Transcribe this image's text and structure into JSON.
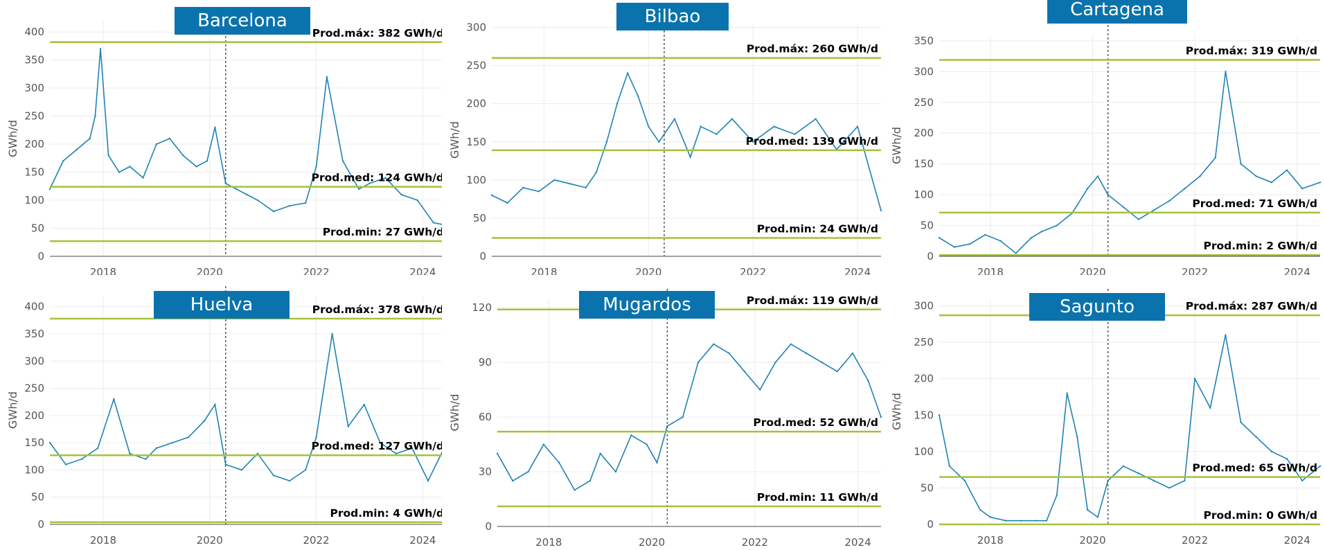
{
  "chart_data": [
    {
      "type": "line",
      "title": "Barcelona",
      "ylabel": "GWh/d",
      "xlim": [
        2017.0,
        2024.45
      ],
      "ylim": [
        0,
        420
      ],
      "yticks": [
        0,
        50,
        100,
        150,
        200,
        250,
        300,
        350,
        400
      ],
      "xticks": [
        2018,
        2020,
        2022,
        2024
      ],
      "vline": 2020.3,
      "ref_lines": [
        {
          "label": "Prod.máx: 382 GWh/d",
          "value": 382
        },
        {
          "label": "Prod.med: 124 GWh/d",
          "value": 124
        },
        {
          "label": "Prod.min: 27 GWh/d",
          "value": 27
        }
      ],
      "series": [
        {
          "x": [
            2017.0,
            2017.25,
            2017.5,
            2017.75,
            2017.85,
            2017.95,
            2018.1,
            2018.3,
            2018.5,
            2018.75,
            2019.0,
            2019.25,
            2019.5,
            2019.75,
            2019.95,
            2020.1,
            2020.3,
            2020.5,
            2020.7,
            2020.9,
            2021.2,
            2021.5,
            2021.8,
            2022.0,
            2022.2,
            2022.5,
            2022.8,
            2023.0,
            2023.3,
            2023.6,
            2023.9,
            2024.2,
            2024.45
          ],
          "y": [
            120,
            170,
            190,
            210,
            250,
            370,
            180,
            150,
            160,
            140,
            200,
            210,
            180,
            160,
            170,
            230,
            130,
            120,
            110,
            100,
            80,
            90,
            95,
            160,
            320,
            170,
            120,
            130,
            140,
            110,
            100,
            60,
            55
          ]
        }
      ]
    },
    {
      "type": "line",
      "title": "Bilbao",
      "ylabel": "GWh/d",
      "xlim": [
        2017.0,
        2024.45
      ],
      "ylim": [
        0,
        305
      ],
      "yticks": [
        0,
        50,
        100,
        150,
        200,
        250,
        300
      ],
      "xticks": [
        2018,
        2020,
        2022,
        2024
      ],
      "vline": 2020.3,
      "ref_lines": [
        {
          "label": "Prod.máx: 260 GWh/d",
          "value": 260
        },
        {
          "label": "Prod.med: 139 GWh/d",
          "value": 139
        },
        {
          "label": "Prod.min: 24 GWh/d",
          "value": 24
        }
      ],
      "series": [
        {
          "x": [
            2017.0,
            2017.3,
            2017.6,
            2017.9,
            2018.2,
            2018.5,
            2018.8,
            2019.0,
            2019.2,
            2019.4,
            2019.6,
            2019.8,
            2020.0,
            2020.2,
            2020.5,
            2020.8,
            2021.0,
            2021.3,
            2021.6,
            2022.0,
            2022.4,
            2022.8,
            2023.2,
            2023.6,
            2024.0,
            2024.45
          ],
          "y": [
            80,
            70,
            90,
            85,
            100,
            95,
            90,
            110,
            150,
            200,
            240,
            210,
            170,
            150,
            180,
            130,
            170,
            160,
            180,
            150,
            170,
            160,
            180,
            140,
            170,
            60
          ]
        }
      ]
    },
    {
      "type": "line",
      "title": "Cartagena",
      "ylabel": "GWh/d",
      "xlim": [
        2017.0,
        2024.45
      ],
      "ylim": [
        0,
        360
      ],
      "yticks": [
        0,
        50,
        100,
        150,
        200,
        250,
        300,
        350
      ],
      "xticks": [
        2018,
        2020,
        2022,
        2024
      ],
      "vline": 2020.3,
      "ref_lines": [
        {
          "label": "Prod.máx: 319 GWh/d",
          "value": 319
        },
        {
          "label": "Prod.med: 71 GWh/d",
          "value": 71
        },
        {
          "label": "Prod.min: 2 GWh/d",
          "value": 2
        }
      ],
      "series": [
        {
          "x": [
            2017.0,
            2017.3,
            2017.6,
            2017.9,
            2018.2,
            2018.5,
            2018.8,
            2019.0,
            2019.3,
            2019.6,
            2019.9,
            2020.1,
            2020.3,
            2020.6,
            2020.9,
            2021.2,
            2021.5,
            2021.8,
            2022.1,
            2022.4,
            2022.6,
            2022.9,
            2023.2,
            2023.5,
            2023.8,
            2024.1,
            2024.45
          ],
          "y": [
            30,
            15,
            20,
            35,
            25,
            5,
            30,
            40,
            50,
            70,
            110,
            130,
            100,
            80,
            60,
            75,
            90,
            110,
            130,
            160,
            300,
            150,
            130,
            120,
            140,
            110,
            120
          ]
        }
      ]
    },
    {
      "type": "line",
      "title": "Huelva",
      "ylabel": "GWh/d",
      "xlim": [
        2017.0,
        2024.45
      ],
      "ylim": [
        0,
        420
      ],
      "yticks": [
        0,
        50,
        100,
        150,
        200,
        250,
        300,
        350,
        400
      ],
      "xticks": [
        2018,
        2020,
        2022,
        2024
      ],
      "vline": 2020.3,
      "ref_lines": [
        {
          "label": "Prod.máx: 378 GWh/d",
          "value": 378
        },
        {
          "label": "Prod.med: 127 GWh/d",
          "value": 127
        },
        {
          "label": "Prod.min: 4 GWh/d",
          "value": 4
        }
      ],
      "series": [
        {
          "x": [
            2017.0,
            2017.3,
            2017.6,
            2017.9,
            2018.2,
            2018.5,
            2018.8,
            2019.0,
            2019.3,
            2019.6,
            2019.9,
            2020.1,
            2020.3,
            2020.6,
            2020.9,
            2021.2,
            2021.5,
            2021.8,
            2022.0,
            2022.3,
            2022.6,
            2022.9,
            2023.2,
            2023.5,
            2023.8,
            2024.1,
            2024.45
          ],
          "y": [
            150,
            110,
            120,
            140,
            230,
            130,
            120,
            140,
            150,
            160,
            190,
            220,
            110,
            100,
            130,
            90,
            80,
            100,
            160,
            350,
            180,
            220,
            150,
            130,
            140,
            80,
            150
          ]
        }
      ]
    },
    {
      "type": "line",
      "title": "Mugardos",
      "ylabel": "GWh/d",
      "xlim": [
        2017.0,
        2024.45
      ],
      "ylim": [
        0,
        125
      ],
      "yticks": [
        0,
        30,
        60,
        90,
        120
      ],
      "xticks": [
        2018,
        2020,
        2022,
        2024
      ],
      "vline": 2020.3,
      "ref_lines": [
        {
          "label": "Prod.máx: 119 GWh/d",
          "value": 119
        },
        {
          "label": "Prod.med: 52 GWh/d",
          "value": 52
        },
        {
          "label": "Prod.min: 11 GWh/d",
          "value": 11
        }
      ],
      "series": [
        {
          "x": [
            2017.0,
            2017.3,
            2017.6,
            2017.9,
            2018.2,
            2018.5,
            2018.8,
            2019.0,
            2019.3,
            2019.6,
            2019.9,
            2020.1,
            2020.3,
            2020.6,
            2020.9,
            2021.2,
            2021.5,
            2021.8,
            2022.1,
            2022.4,
            2022.7,
            2023.0,
            2023.3,
            2023.6,
            2023.9,
            2024.2,
            2024.45
          ],
          "y": [
            40,
            25,
            30,
            45,
            35,
            20,
            25,
            40,
            30,
            50,
            45,
            35,
            55,
            60,
            90,
            100,
            95,
            85,
            75,
            90,
            100,
            95,
            90,
            85,
            95,
            80,
            60
          ]
        }
      ]
    },
    {
      "type": "line",
      "title": "Sagunto",
      "ylabel": "GWh/d",
      "xlim": [
        2017.0,
        2024.45
      ],
      "ylim": [
        0,
        310
      ],
      "yticks": [
        0,
        50,
        100,
        150,
        200,
        250,
        300
      ],
      "xticks": [
        2018,
        2020,
        2022,
        2024
      ],
      "vline": 2020.3,
      "ref_lines": [
        {
          "label": "Prod.máx: 287 GWh/d",
          "value": 287
        },
        {
          "label": "Prod.med: 65 GWh/d",
          "value": 65
        },
        {
          "label": "Prod.min: 0 GWh/d",
          "value": 0
        }
      ],
      "series": [
        {
          "x": [
            2017.0,
            2017.2,
            2017.5,
            2017.8,
            2018.0,
            2018.3,
            2018.6,
            2018.9,
            2019.1,
            2019.3,
            2019.5,
            2019.7,
            2019.9,
            2020.1,
            2020.3,
            2020.6,
            2020.9,
            2021.2,
            2021.5,
            2021.8,
            2022.0,
            2022.3,
            2022.6,
            2022.9,
            2023.2,
            2023.5,
            2023.8,
            2024.1,
            2024.45
          ],
          "y": [
            150,
            80,
            60,
            20,
            10,
            5,
            5,
            5,
            5,
            40,
            180,
            120,
            20,
            10,
            60,
            80,
            70,
            60,
            50,
            60,
            200,
            160,
            260,
            140,
            120,
            100,
            90,
            60,
            80
          ]
        }
      ]
    }
  ],
  "colors": {
    "line": "#1f82b3",
    "ref": "#a4c23a",
    "title_bg": "#0a73ad",
    "grid": "#ececec",
    "vline": "#555555"
  }
}
